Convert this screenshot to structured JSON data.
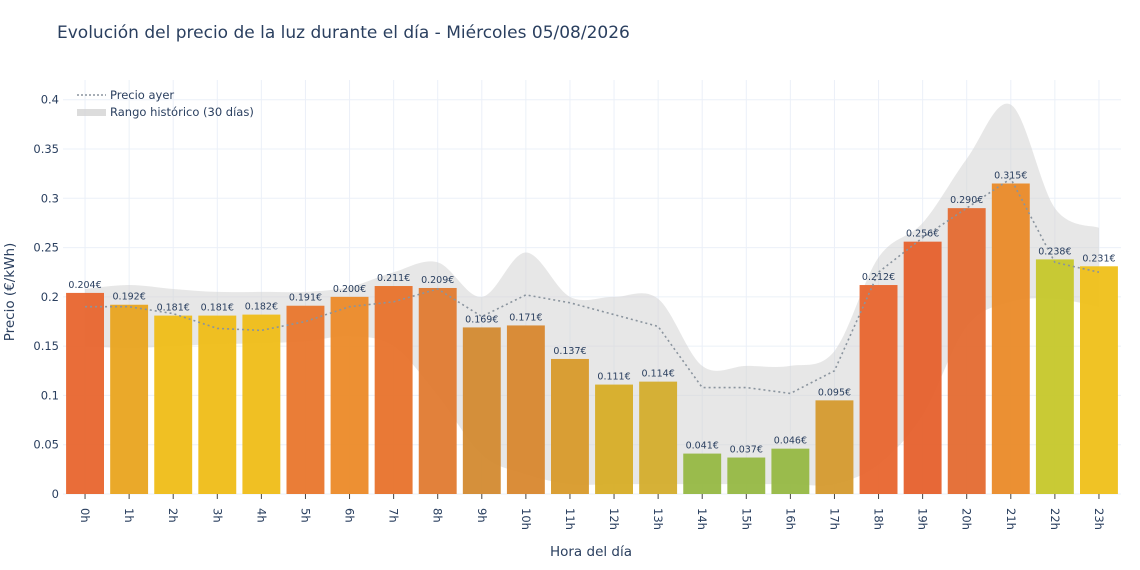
{
  "chart_data": {
    "type": "bar",
    "title": "Evolución del precio de la luz durante el día - Miércoles 05/08/2026",
    "xlabel": "Hora del día",
    "ylabel": "Precio (€/kWh)",
    "ylim": [
      0,
      0.42
    ],
    "yticks": [
      0,
      0.05,
      0.1,
      0.15,
      0.2,
      0.25,
      0.3,
      0.35,
      0.4
    ],
    "ytick_labels": [
      "0",
      "0.05",
      "0.1",
      "0.15",
      "0.2",
      "0.25",
      "0.3",
      "0.35",
      "0.4"
    ],
    "categories": [
      "0h",
      "1h",
      "2h",
      "3h",
      "4h",
      "5h",
      "6h",
      "7h",
      "8h",
      "9h",
      "10h",
      "11h",
      "12h",
      "13h",
      "14h",
      "15h",
      "16h",
      "17h",
      "18h",
      "19h",
      "20h",
      "21h",
      "22h",
      "23h"
    ],
    "values": [
      0.204,
      0.192,
      0.181,
      0.181,
      0.182,
      0.191,
      0.2,
      0.211,
      0.209,
      0.169,
      0.171,
      0.137,
      0.111,
      0.114,
      0.041,
      0.037,
      0.046,
      0.095,
      0.212,
      0.256,
      0.29,
      0.315,
      0.238,
      0.231
    ],
    "value_labels": [
      "0.204€",
      "0.192€",
      "0.181€",
      "0.181€",
      "0.182€",
      "0.191€",
      "0.200€",
      "0.211€",
      "0.209€",
      "0.169€",
      "0.171€",
      "0.137€",
      "0.111€",
      "0.114€",
      "0.041€",
      "0.037€",
      "0.046€",
      "0.095€",
      "0.212€",
      "0.256€",
      "0.290€",
      "0.315€",
      "0.238€",
      "0.231€"
    ],
    "bar_colors": [
      "#e8652e",
      "#e9a41f",
      "#efbd17",
      "#efbd17",
      "#efbd17",
      "#e9762c",
      "#ec8a28",
      "#e8722b",
      "#e07a30",
      "#d38a30",
      "#d8872e",
      "#d89a2a",
      "#d7ad26",
      "#d4ad2c",
      "#96b843",
      "#96b843",
      "#96b843",
      "#d59a2e",
      "#e8652e",
      "#e6602c",
      "#e46a30",
      "#ea8a28",
      "#c6c72a",
      "#efc019"
    ],
    "series": [
      {
        "name": "Precio ayer",
        "style": "dotted",
        "color": "#8a949e",
        "values": [
          0.19,
          0.19,
          0.183,
          0.168,
          0.166,
          0.175,
          0.19,
          0.195,
          0.208,
          0.18,
          0.202,
          0.194,
          0.182,
          0.17,
          0.108,
          0.108,
          0.102,
          0.125,
          0.225,
          0.26,
          0.29,
          0.32,
          0.235,
          0.225
        ]
      },
      {
        "name": "Rango histórico (30 días)",
        "style": "band",
        "color": "#d3d3d3",
        "lower": [
          0.15,
          0.148,
          0.15,
          0.152,
          0.153,
          0.155,
          0.16,
          0.15,
          0.1,
          0.04,
          0.02,
          0.01,
          0.01,
          0.01,
          0.01,
          0.01,
          0.01,
          0.01,
          0.03,
          0.08,
          0.17,
          0.195,
          0.198,
          0.19
        ],
        "upper": [
          0.208,
          0.212,
          0.208,
          0.205,
          0.205,
          0.205,
          0.21,
          0.225,
          0.235,
          0.2,
          0.245,
          0.2,
          0.2,
          0.198,
          0.13,
          0.13,
          0.13,
          0.145,
          0.24,
          0.275,
          0.34,
          0.395,
          0.29,
          0.27
        ]
      }
    ],
    "legend_position": "top-left",
    "grid": true
  }
}
